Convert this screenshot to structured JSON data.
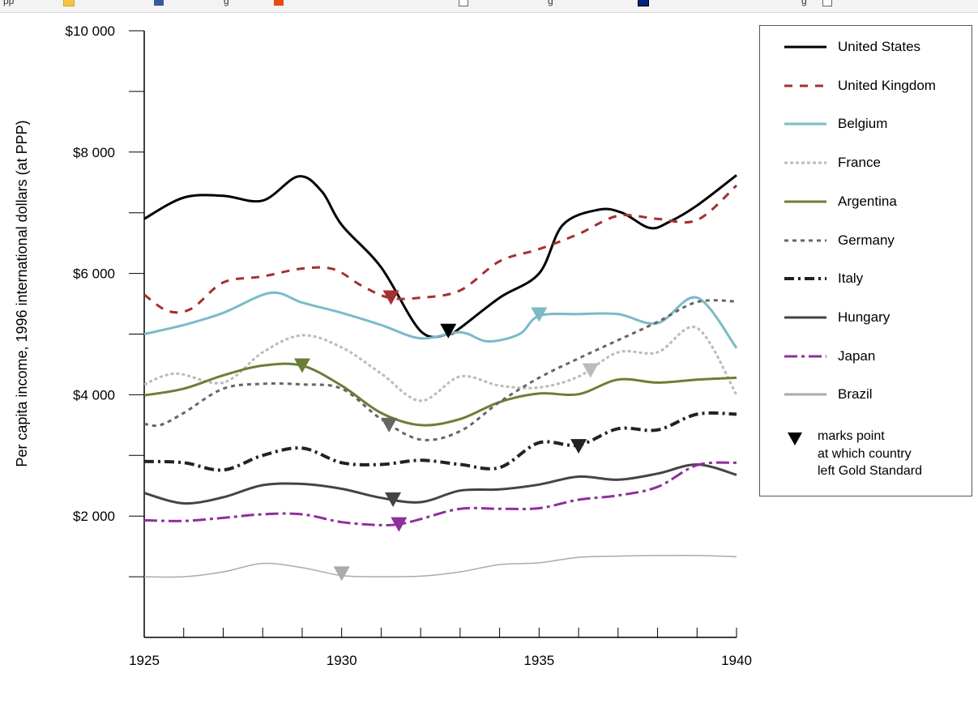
{
  "browser": {
    "bookmarks": [
      {
        "label": "pp",
        "icon": "folder-icon"
      },
      {
        "label": "",
        "icon": "folder-icon"
      },
      {
        "label": "g",
        "icon": "facebook-icon"
      },
      {
        "label": "",
        "icon": "office-icon"
      },
      {
        "label": "g",
        "icon": "page-icon"
      },
      {
        "label": "g",
        "icon": "flag-icon"
      },
      {
        "label": "",
        "icon": "page-icon"
      }
    ]
  },
  "chart_data": {
    "type": "line",
    "title": "",
    "xlabel": "",
    "ylabel": "Per capita income, 1996 international dollars (at PPP)",
    "xlim": [
      1925,
      1940
    ],
    "ylim": [
      0,
      10000
    ],
    "x_ticks": [
      1925,
      1930,
      1935,
      1940
    ],
    "x_tick_labels": [
      "1925",
      "1930",
      "1935",
      "1940"
    ],
    "y_ticks": [
      2000,
      4000,
      6000,
      8000,
      10000
    ],
    "y_tick_labels": [
      "$2 000",
      "$4 000",
      "$6 000",
      "$8 000",
      "$10 000"
    ],
    "grid": false,
    "legend_position": "right",
    "marker_note": "marks point\nat which country\nleft Gold Standard",
    "series": [
      {
        "name": "United States",
        "color": "#000000",
        "width": 3,
        "dash": "",
        "x": [
          1925,
          1926,
          1927,
          1928,
          1928.9,
          1929.5,
          1930,
          1931,
          1932,
          1932.7,
          1933,
          1934,
          1935,
          1935.6,
          1936.5,
          1937.1,
          1937.8,
          1938.3,
          1939,
          1940
        ],
        "y": [
          6900,
          7250,
          7280,
          7200,
          7600,
          7350,
          6800,
          6100,
          5050,
          5000,
          5100,
          5600,
          6000,
          6800,
          7050,
          7000,
          6750,
          6850,
          7120,
          7620
        ],
        "gold": {
          "x": 1932.7,
          "y": 5050
        }
      },
      {
        "name": "United Kingdom",
        "color": "#a33030",
        "width": 3,
        "dash": "10,9",
        "x": [
          1925,
          1925.6,
          1926.2,
          1927,
          1928,
          1929,
          1929.8,
          1930.5,
          1931.2,
          1932,
          1933,
          1934,
          1935,
          1936,
          1937,
          1938,
          1939,
          1940
        ],
        "y": [
          5650,
          5380,
          5420,
          5850,
          5950,
          6080,
          6070,
          5800,
          5600,
          5600,
          5720,
          6200,
          6400,
          6650,
          6950,
          6900,
          6880,
          7450
        ],
        "gold": {
          "x": 1931.25,
          "y": 5600
        }
      },
      {
        "name": "Belgium",
        "color": "#7bbac8",
        "width": 3,
        "dash": "",
        "x": [
          1925,
          1926,
          1927,
          1928.2,
          1929,
          1930,
          1931,
          1932,
          1933,
          1933.7,
          1934.5,
          1935,
          1936,
          1937,
          1938,
          1939,
          1940
        ],
        "y": [
          5000,
          5150,
          5350,
          5680,
          5520,
          5350,
          5150,
          4930,
          5030,
          4880,
          5000,
          5300,
          5330,
          5330,
          5180,
          5600,
          4770
        ],
        "gold": {
          "x": 1935,
          "y": 5320
        }
      },
      {
        "name": "France",
        "color": "#bbbbbb",
        "width": 3,
        "dash": "4,3",
        "x": [
          1925,
          1925.8,
          1927,
          1928,
          1929,
          1930,
          1931,
          1932,
          1933,
          1934,
          1935,
          1936,
          1937,
          1938,
          1939,
          1940
        ],
        "y": [
          4170,
          4350,
          4200,
          4700,
          4980,
          4780,
          4350,
          3900,
          4300,
          4150,
          4120,
          4300,
          4700,
          4700,
          5100,
          4000
        ],
        "gold": {
          "x": 1936.3,
          "y": 4400
        }
      },
      {
        "name": "Argentina",
        "color": "#6a7f35",
        "width": 3,
        "dash": "",
        "x": [
          1925,
          1926,
          1927,
          1928,
          1929,
          1930,
          1931,
          1932,
          1933,
          1934,
          1935,
          1936,
          1937,
          1938,
          1939,
          1940
        ],
        "y": [
          3990,
          4100,
          4320,
          4480,
          4480,
          4150,
          3700,
          3500,
          3600,
          3880,
          4020,
          4010,
          4250,
          4200,
          4250,
          4280
        ],
        "gold": {
          "x": 1929,
          "y": 4480
        }
      },
      {
        "name": "Germany",
        "color": "#666666",
        "width": 3,
        "dash": "5,5",
        "x": [
          1925,
          1925.4,
          1926,
          1927,
          1928,
          1929,
          1930,
          1931,
          1932,
          1933,
          1934,
          1935,
          1936,
          1937,
          1938,
          1939,
          1940
        ],
        "y": [
          3520,
          3500,
          3700,
          4100,
          4180,
          4170,
          4100,
          3600,
          3260,
          3400,
          3880,
          4280,
          4600,
          4900,
          5200,
          5530,
          5540
        ],
        "gold": {
          "x": 1931.2,
          "y": 3500
        }
      },
      {
        "name": "Italy",
        "color": "#222222",
        "width": 4,
        "dash": "12,5,3,5",
        "x": [
          1925,
          1926,
          1927,
          1928,
          1929,
          1930,
          1931,
          1932,
          1933,
          1934,
          1935,
          1936,
          1937,
          1938,
          1939,
          1940
        ],
        "y": [
          2900,
          2880,
          2760,
          3000,
          3120,
          2880,
          2850,
          2920,
          2850,
          2800,
          3210,
          3170,
          3440,
          3420,
          3680,
          3680
        ],
        "gold": {
          "x": 1936,
          "y": 3150
        }
      },
      {
        "name": "Hungary",
        "color": "#444444",
        "width": 3,
        "dash": "",
        "x": [
          1925,
          1926,
          1927,
          1928,
          1929,
          1930,
          1931,
          1932,
          1933,
          1934,
          1935,
          1936,
          1937,
          1938,
          1939,
          1940
        ],
        "y": [
          2380,
          2210,
          2310,
          2510,
          2530,
          2450,
          2300,
          2230,
          2420,
          2440,
          2520,
          2650,
          2600,
          2700,
          2850,
          2680
        ],
        "gold": {
          "x": 1931.3,
          "y": 2270
        }
      },
      {
        "name": "Japan",
        "color": "#8e2f9b",
        "width": 3,
        "dash": "16,5,4,5",
        "x": [
          1925,
          1926,
          1927,
          1928,
          1929,
          1930,
          1931,
          1931.5,
          1932,
          1933,
          1934,
          1935,
          1936,
          1937,
          1938,
          1939,
          1940
        ],
        "y": [
          1930,
          1920,
          1970,
          2030,
          2030,
          1900,
          1850,
          1870,
          1950,
          2120,
          2120,
          2130,
          2270,
          2340,
          2480,
          2840,
          2880
        ],
        "gold": {
          "x": 1931.45,
          "y": 1860
        }
      },
      {
        "name": "Brazil",
        "color": "#aaaaaa",
        "width": 1.5,
        "dash": "",
        "x": [
          1925,
          1926,
          1927,
          1928,
          1929,
          1930,
          1931,
          1932,
          1933,
          1934,
          1935,
          1936,
          1937,
          1938,
          1939,
          1940
        ],
        "y": [
          1000,
          1000,
          1080,
          1220,
          1150,
          1020,
          1000,
          1010,
          1080,
          1200,
          1230,
          1320,
          1340,
          1350,
          1350,
          1330
        ],
        "gold": {
          "x": 1930,
          "y": 1050
        }
      }
    ]
  }
}
